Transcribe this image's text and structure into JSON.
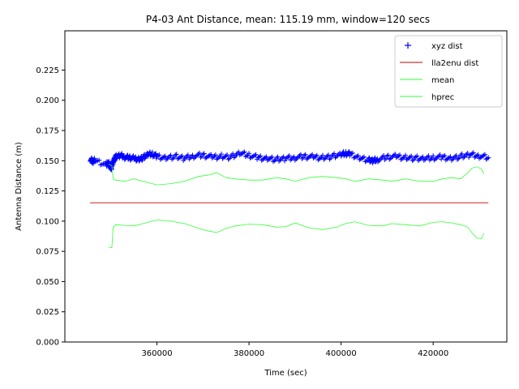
{
  "chart_data": {
    "type": "line",
    "title": "P4-03 Ant Distance, mean: 115.19 mm, window=120 secs",
    "xlabel": "Time (sec)",
    "ylabel": "Antenna Distance (m)",
    "xlim": [
      340000,
      436000
    ],
    "ylim": [
      0.0,
      0.2575
    ],
    "x_ticks": [
      360000,
      380000,
      400000,
      420000
    ],
    "x_tick_labels": [
      "360000",
      "380000",
      "400000",
      "420000"
    ],
    "y_ticks": [
      0.0,
      0.025,
      0.05,
      0.075,
      0.1,
      0.125,
      0.15,
      0.175,
      0.2,
      0.225
    ],
    "y_tick_labels": [
      "0.000",
      "0.025",
      "0.050",
      "0.075",
      "0.100",
      "0.125",
      "0.150",
      "0.175",
      "0.200",
      "0.225"
    ],
    "grid": false,
    "legend_position": "top-right",
    "series": [
      {
        "name": "xyz dist",
        "marker": "+",
        "color": "#0000ff",
        "x": [
          345500,
          346000,
          346500,
          349000,
          349500,
          349800,
          350100,
          350400,
          350700,
          351000,
          352000,
          353000,
          354000,
          355000,
          356000,
          357000,
          358000,
          359000,
          360000,
          362000,
          364000,
          366000,
          368000,
          370000,
          372000,
          374000,
          376000,
          378000,
          380000,
          382000,
          384000,
          386000,
          388000,
          390000,
          392000,
          394000,
          396000,
          398000,
          400000,
          401000,
          402000,
          404000,
          406000,
          407000,
          408000,
          410000,
          412000,
          414000,
          416000,
          418000,
          420000,
          422000,
          424000,
          426000,
          428000,
          430000,
          432000
        ],
        "y": [
          0.1515,
          0.1495,
          0.15,
          0.147,
          0.148,
          0.145,
          0.144,
          0.1485,
          0.151,
          0.153,
          0.1545,
          0.153,
          0.1525,
          0.152,
          0.151,
          0.1525,
          0.155,
          0.1555,
          0.1535,
          0.1525,
          0.1535,
          0.152,
          0.154,
          0.1545,
          0.153,
          0.1535,
          0.153,
          0.156,
          0.1545,
          0.1525,
          0.152,
          0.151,
          0.152,
          0.1525,
          0.1535,
          0.153,
          0.1525,
          0.1535,
          0.155,
          0.156,
          0.1555,
          0.1525,
          0.1505,
          0.15,
          0.151,
          0.153,
          0.1535,
          0.1525,
          0.152,
          0.1515,
          0.1525,
          0.153,
          0.152,
          0.1535,
          0.155,
          0.154,
          0.1525
        ]
      },
      {
        "name": "lla2enu dist",
        "color": "#c00000",
        "x": [
          345500,
          432000
        ],
        "y": [
          0.1152,
          0.1152
        ]
      },
      {
        "name": "mean",
        "color": "#33ff33",
        "x": [
          349500,
          350200,
          350500,
          351000,
          353000,
          355000,
          357000,
          360000,
          363000,
          366000,
          369000,
          371000,
          373000,
          375000,
          377000,
          380000,
          383000,
          386000,
          388000,
          390000,
          393000,
          396000,
          399000,
          401000,
          403000,
          406000,
          409000,
          411000,
          414000,
          417000,
          420000,
          422000,
          424000,
          426000,
          427500,
          428500,
          429500,
          430500,
          431000
        ],
        "y": [
          0.147,
          0.146,
          0.135,
          0.134,
          0.133,
          0.135,
          0.133,
          0.13,
          0.131,
          0.133,
          0.137,
          0.138,
          0.14,
          0.136,
          0.135,
          0.134,
          0.134,
          0.136,
          0.135,
          0.133,
          0.136,
          0.137,
          0.136,
          0.135,
          0.133,
          0.135,
          0.134,
          0.133,
          0.135,
          0.133,
          0.133,
          0.135,
          0.136,
          0.135,
          0.14,
          0.144,
          0.145,
          0.143,
          0.139
        ]
      },
      {
        "name": "hprec",
        "color": "#33ff33",
        "x": [
          349500,
          350200,
          350500,
          351000,
          353000,
          355000,
          357000,
          360000,
          363000,
          366000,
          369000,
          371000,
          373000,
          375000,
          377000,
          380000,
          383000,
          386000,
          388000,
          390000,
          393000,
          396000,
          399000,
          401000,
          403000,
          406000,
          409000,
          411000,
          414000,
          417000,
          420000,
          422000,
          424000,
          426000,
          427500,
          428500,
          429500,
          430500,
          431000
        ],
        "y": [
          0.0785,
          0.078,
          0.095,
          0.097,
          0.0965,
          0.096,
          0.098,
          0.101,
          0.1,
          0.098,
          0.094,
          0.092,
          0.0905,
          0.094,
          0.096,
          0.0975,
          0.097,
          0.095,
          0.0955,
          0.0985,
          0.0945,
          0.093,
          0.095,
          0.098,
          0.0995,
          0.0965,
          0.096,
          0.098,
          0.097,
          0.096,
          0.099,
          0.0995,
          0.0985,
          0.097,
          0.095,
          0.09,
          0.086,
          0.0855,
          0.09
        ]
      }
    ]
  }
}
